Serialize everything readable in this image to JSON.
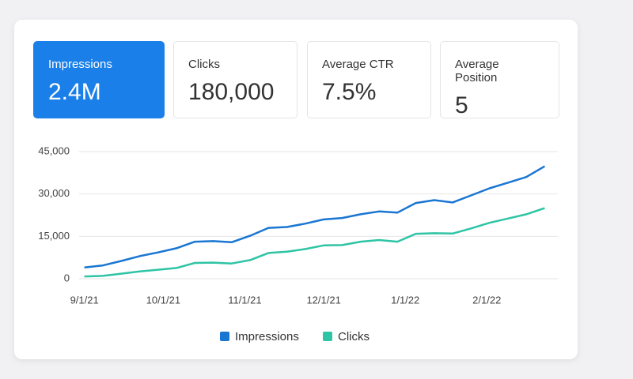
{
  "cards": [
    {
      "label": "Impressions",
      "value": "2.4M"
    },
    {
      "label": "Clicks",
      "value": "180,000"
    },
    {
      "label": "Average CTR",
      "value": "7.5%"
    },
    {
      "label": "Average Position",
      "value": "5"
    }
  ],
  "chart_data": {
    "type": "line",
    "x": [
      "2021-09-01",
      "2021-09-08",
      "2021-09-15",
      "2021-09-22",
      "2021-09-29",
      "2021-10-06",
      "2021-10-13",
      "2021-10-20",
      "2021-10-27",
      "2021-11-03",
      "2021-11-10",
      "2021-11-17",
      "2021-11-24",
      "2021-12-01",
      "2021-12-08",
      "2021-12-15",
      "2021-12-22",
      "2021-12-29",
      "2022-01-05",
      "2022-01-12",
      "2022-01-19",
      "2022-01-26",
      "2022-02-02",
      "2022-02-09",
      "2022-02-16",
      "2022-02-23"
    ],
    "series": [
      {
        "name": "Impressions",
        "color": "#1976d2",
        "values": [
          4000,
          4700,
          6300,
          8000,
          9300,
          10800,
          13100,
          13300,
          12900,
          15200,
          18000,
          18300,
          19500,
          21000,
          21500,
          22800,
          23800,
          23400,
          26800,
          27800,
          27000,
          29500,
          32000,
          34000,
          36000,
          39800
        ]
      },
      {
        "name": "Clicks",
        "color": "#2ec4a5",
        "values": [
          800,
          1000,
          1800,
          2600,
          3200,
          3800,
          5600,
          5700,
          5400,
          6600,
          9100,
          9600,
          10500,
          11800,
          11900,
          13100,
          13700,
          13100,
          15900,
          16100,
          16000,
          17800,
          19800,
          21300,
          22800,
          25000
        ]
      }
    ],
    "xlim": [
      "2021-08-30",
      "2022-02-28"
    ],
    "xticks": [
      {
        "value": "2021-09-01",
        "label": "9/1/21"
      },
      {
        "value": "2021-10-01",
        "label": "10/1/21"
      },
      {
        "value": "2021-11-01",
        "label": "11/1/21"
      },
      {
        "value": "2021-12-01",
        "label": "12/1/21"
      },
      {
        "value": "2022-01-01",
        "label": "1/1/22"
      },
      {
        "value": "2022-02-01",
        "label": "2/1/22"
      }
    ],
    "ylim": [
      0,
      45000
    ],
    "yticks": [
      0,
      {
        "value": 15000,
        "label": "15,000"
      },
      {
        "value": 30000,
        "label": "30,000"
      },
      {
        "value": 45000,
        "label": "45,000"
      }
    ],
    "grid": true
  }
}
